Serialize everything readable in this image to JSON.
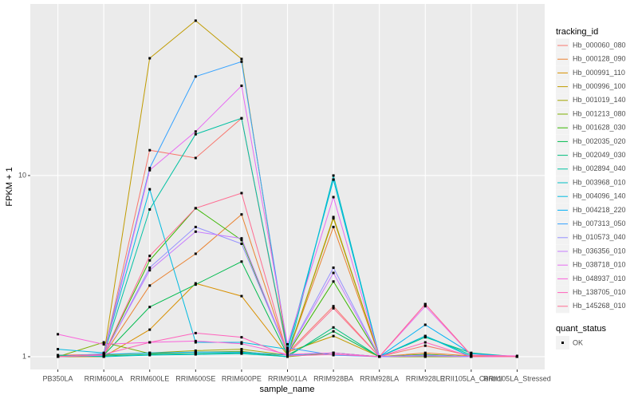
{
  "chart_data": {
    "type": "line",
    "x_label": "sample_name",
    "y_label": "FPKM + 1",
    "categories": [
      "PB350LA",
      "RRIM600LA",
      "RRIM600LE",
      "RRIM600SE",
      "RRIM600PE",
      "RRIM901LA",
      "RRIM928BA",
      "RRIM928LA",
      "RRIM928LE",
      "RRII105LA_Control",
      "RRII105LA_Stressed"
    ],
    "ylim": [
      0.85,
      88.5
    ],
    "yticks": [
      1,
      10
    ],
    "log_y": true,
    "grid": true,
    "legend_title": "tracking_id",
    "legend_position": "right",
    "point_legend_title": "quant_status",
    "point_legend_label": "OK",
    "point_color": "#000000",
    "series": [
      {
        "name": "Hb_000060_080",
        "color": "#F8766D",
        "values": [
          1.02,
          1.03,
          13.8,
          12.5,
          20.7,
          1.05,
          1.9,
          1.0,
          1.15,
          1.01,
          1.0
        ]
      },
      {
        "name": "Hb_000128_090",
        "color": "#EA8331",
        "values": [
          1.0,
          1.02,
          2.47,
          3.7,
          6.1,
          1.03,
          5.2,
          1.0,
          1.05,
          1.01,
          1.0
        ]
      },
      {
        "name": "Hb_000991_110",
        "color": "#D89000",
        "values": [
          1.0,
          1.0,
          1.41,
          2.54,
          2.16,
          1.02,
          5.9,
          1.0,
          1.03,
          1.0,
          1.0
        ]
      },
      {
        "name": "Hb_000996_100",
        "color": "#C09B00",
        "values": [
          1.0,
          1.02,
          44.4,
          71.6,
          44.0,
          1.06,
          1.3,
          1.0,
          1.02,
          1.0,
          1.0
        ]
      },
      {
        "name": "Hb_001019_140",
        "color": "#A3A500",
        "values": [
          1.01,
          1.02,
          1.05,
          1.08,
          1.1,
          1.02,
          5.8,
          1.0,
          1.0,
          1.0,
          1.0
        ]
      },
      {
        "name": "Hb_001213_080",
        "color": "#7CAE00",
        "values": [
          1.0,
          1.2,
          1.04,
          1.06,
          1.07,
          1.0,
          1.05,
          1.0,
          1.0,
          1.0,
          1.0
        ]
      },
      {
        "name": "Hb_001628_030",
        "color": "#39B600",
        "values": [
          1.0,
          1.03,
          3.4,
          6.6,
          4.4,
          1.04,
          2.6,
          1.0,
          1.03,
          1.0,
          1.0
        ]
      },
      {
        "name": "Hb_002035_020",
        "color": "#00BB4E",
        "values": [
          1.0,
          1.02,
          1.88,
          2.5,
          3.35,
          1.02,
          1.38,
          1.0,
          1.02,
          1.0,
          1.0
        ]
      },
      {
        "name": "Hb_002049_030",
        "color": "#00BF7D",
        "values": [
          1.0,
          1.01,
          1.03,
          1.04,
          1.05,
          1.0,
          1.45,
          1.0,
          1.28,
          1.05,
          1.0
        ]
      },
      {
        "name": "Hb_002894_040",
        "color": "#00C1A3",
        "values": [
          1.0,
          1.03,
          6.5,
          16.9,
          20.7,
          1.08,
          9.5,
          1.0,
          1.3,
          1.02,
          1.0
        ]
      },
      {
        "name": "Hb_003968_010",
        "color": "#00BFC4",
        "values": [
          1.02,
          1.0,
          1.02,
          1.03,
          1.04,
          1.0,
          10.0,
          1.0,
          1.02,
          1.0,
          1.0
        ]
      },
      {
        "name": "Hb_004096_140",
        "color": "#00BAE0",
        "values": [
          1.1,
          1.05,
          8.4,
          1.2,
          1.2,
          1.1,
          9.5,
          1.0,
          1.3,
          1.0,
          1.0
        ]
      },
      {
        "name": "Hb_004218_220",
        "color": "#00B0F6",
        "values": [
          1.0,
          1.03,
          1.05,
          1.06,
          1.06,
          1.02,
          1.05,
          1.0,
          1.5,
          1.04,
          1.0
        ]
      },
      {
        "name": "Hb_007313_050",
        "color": "#35A2FF",
        "values": [
          1.0,
          1.04,
          11.0,
          35.2,
          42.5,
          1.12,
          1.02,
          1.0,
          1.02,
          1.0,
          1.0
        ]
      },
      {
        "name": "Hb_010573_040",
        "color": "#9590FF",
        "values": [
          1.0,
          1.02,
          3.1,
          5.2,
          4.2,
          1.05,
          3.1,
          1.0,
          1.02,
          1.0,
          1.0
        ]
      },
      {
        "name": "Hb_036356_010",
        "color": "#C77CFF",
        "values": [
          1.0,
          1.03,
          3.0,
          4.9,
          4.5,
          1.05,
          2.9,
          1.0,
          1.01,
          1.0,
          1.0
        ]
      },
      {
        "name": "Hb_038718_010",
        "color": "#E76BF3",
        "values": [
          1.0,
          1.02,
          10.7,
          17.5,
          31.3,
          1.17,
          7.6,
          1.0,
          1.9,
          1.02,
          1.0
        ]
      },
      {
        "name": "Hb_048937_010",
        "color": "#FA62DB",
        "values": [
          1.33,
          1.17,
          1.2,
          1.22,
          1.18,
          1.03,
          1.05,
          1.0,
          1.95,
          1.02,
          1.01
        ]
      },
      {
        "name": "Hb_138705_010",
        "color": "#FF62BC",
        "values": [
          1.0,
          1.03,
          1.2,
          1.35,
          1.28,
          1.01,
          1.03,
          1.0,
          1.2,
          1.0,
          1.0
        ]
      },
      {
        "name": "Hb_145268_010",
        "color": "#FF6C91",
        "values": [
          1.0,
          1.03,
          3.6,
          6.6,
          8.0,
          1.03,
          1.85,
          1.0,
          1.95,
          1.02,
          1.0
        ]
      }
    ]
  }
}
